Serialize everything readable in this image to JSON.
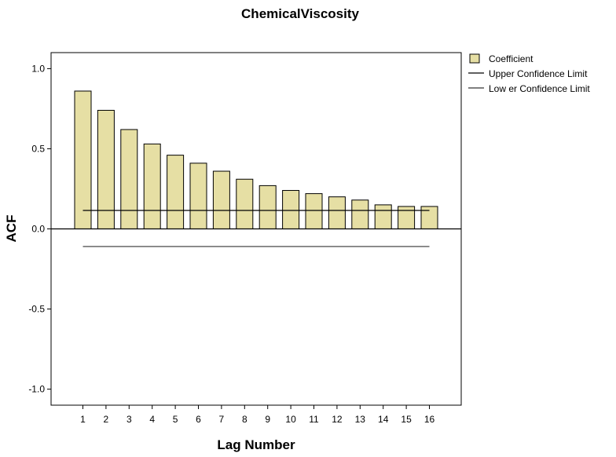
{
  "chart_data": {
    "type": "bar",
    "title": "ChemicalViscosity",
    "xlabel": "Lag Number",
    "ylabel": "ACF",
    "categories": [
      "1",
      "2",
      "3",
      "4",
      "5",
      "6",
      "7",
      "8",
      "9",
      "10",
      "11",
      "12",
      "13",
      "14",
      "15",
      "16"
    ],
    "series": [
      {
        "name": "Coefficient",
        "type": "bar",
        "color": "#e6dfa4",
        "values": [
          0.86,
          0.74,
          0.62,
          0.53,
          0.46,
          0.41,
          0.36,
          0.31,
          0.27,
          0.24,
          0.22,
          0.2,
          0.18,
          0.15,
          0.14,
          0.14
        ]
      },
      {
        "name": "Upper Confidence Limit",
        "type": "line",
        "color": "#000000",
        "values": [
          0.115,
          0.115,
          0.115,
          0.115,
          0.115,
          0.115,
          0.115,
          0.115,
          0.115,
          0.115,
          0.115,
          0.115,
          0.115,
          0.115,
          0.115,
          0.115
        ]
      },
      {
        "name": "Lower Confidence Limit",
        "type": "line",
        "color": "#333333",
        "values": [
          -0.11,
          -0.11,
          -0.11,
          -0.11,
          -0.11,
          -0.11,
          -0.11,
          -0.11,
          -0.11,
          -0.11,
          -0.11,
          -0.11,
          -0.11,
          -0.11,
          -0.11,
          -0.11
        ]
      }
    ],
    "legend_labels": [
      "Coefficient",
      "Upper Confidence Limit",
      "Low er Confidence Limit"
    ],
    "yticks": [
      "-1.0",
      "-0.5",
      "0.0",
      "0.5",
      "1.0"
    ],
    "ytick_values": [
      -1.0,
      -0.5,
      0.0,
      0.5,
      1.0
    ],
    "ylim": [
      -1.1,
      1.1
    ],
    "grid": false,
    "legend_position": "right"
  }
}
